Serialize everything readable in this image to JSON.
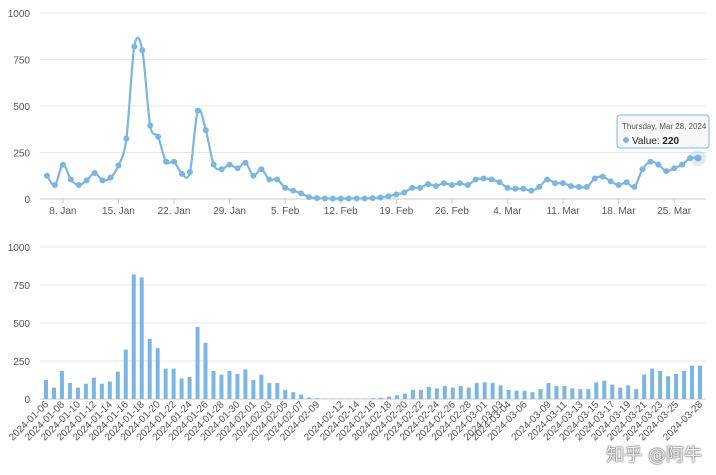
{
  "chart_data": [
    {
      "type": "line",
      "title": "",
      "xlabel": "",
      "ylabel": "",
      "ylim": [
        0,
        1000
      ],
      "yticks": [
        0,
        250,
        500,
        750,
        1000
      ],
      "series": [
        {
          "name": "Value",
          "color": "#7cb5e0"
        }
      ],
      "x_ticks": [
        "8. Jan",
        "15. Jan",
        "22. Jan",
        "29. Jan",
        "5. Feb",
        "12. Feb",
        "19. Feb",
        "26. Feb",
        "4. Mar",
        "11. Mar",
        "18. Mar",
        "25. Mar"
      ],
      "tooltip": {
        "date": "Thursday, Mar 28, 2024",
        "label": "Value",
        "value": "220"
      }
    },
    {
      "type": "bar",
      "title": "",
      "xlabel": "",
      "ylabel": "",
      "ylim": [
        0,
        1000
      ],
      "yticks": [
        0,
        250,
        500,
        750,
        1000
      ],
      "series": [
        {
          "name": "Value",
          "color": "#7cb5e0"
        }
      ],
      "x_ticks": [
        "2024-01-06",
        "2024-01-08",
        "2024-01-10",
        "2024-01-12",
        "2024-01-14",
        "2024-01-16",
        "2024-01-18",
        "2024-01-20",
        "2024-01-22",
        "2024-01-24",
        "2024-01-26",
        "2024-01-28",
        "2024-01-30",
        "2024-02-01",
        "2024-02-03",
        "2024-02-05",
        "2024-02-07",
        "2024-02-09",
        "2024-02-12",
        "2024-02-14",
        "2024-02-16",
        "2024-02-18",
        "2024-02-20",
        "2024-02-22",
        "2024-02-24",
        "2024-02-26",
        "2024-02-28",
        "2024-03-01",
        "2024-03-03",
        "2024-03-04",
        "2024-03-06",
        "2024-03-09",
        "2024-03-11",
        "2024-03-13",
        "2024-03-15",
        "2024-03-17",
        "2024-03-19",
        "2024-03-21",
        "2024-03-23",
        "2024-03-25",
        "2024-03-28"
      ]
    }
  ],
  "dates": [
    "2024-01-06",
    "2024-01-07",
    "2024-01-08",
    "2024-01-09",
    "2024-01-10",
    "2024-01-11",
    "2024-01-12",
    "2024-01-13",
    "2024-01-14",
    "2024-01-15",
    "2024-01-16",
    "2024-01-17",
    "2024-01-18",
    "2024-01-19",
    "2024-01-20",
    "2024-01-21",
    "2024-01-22",
    "2024-01-23",
    "2024-01-24",
    "2024-01-25",
    "2024-01-26",
    "2024-01-27",
    "2024-01-28",
    "2024-01-29",
    "2024-01-30",
    "2024-01-31",
    "2024-02-01",
    "2024-02-02",
    "2024-02-03",
    "2024-02-04",
    "2024-02-05",
    "2024-02-06",
    "2024-02-07",
    "2024-02-08",
    "2024-02-09",
    "2024-02-10",
    "2024-02-11",
    "2024-02-12",
    "2024-02-13",
    "2024-02-14",
    "2024-02-15",
    "2024-02-16",
    "2024-02-17",
    "2024-02-18",
    "2024-02-19",
    "2024-02-20",
    "2024-02-21",
    "2024-02-22",
    "2024-02-23",
    "2024-02-24",
    "2024-02-25",
    "2024-02-26",
    "2024-02-27",
    "2024-02-28",
    "2024-02-29",
    "2024-03-01",
    "2024-03-02",
    "2024-03-03",
    "2024-03-04",
    "2024-03-05",
    "2024-03-06",
    "2024-03-07",
    "2024-03-08",
    "2024-03-09",
    "2024-03-10",
    "2024-03-11",
    "2024-03-12",
    "2024-03-13",
    "2024-03-14",
    "2024-03-15",
    "2024-03-16",
    "2024-03-17",
    "2024-03-18",
    "2024-03-19",
    "2024-03-20",
    "2024-03-21",
    "2024-03-22",
    "2024-03-23",
    "2024-03-24",
    "2024-03-25",
    "2024-03-26",
    "2024-03-27",
    "2024-03-28"
  ],
  "values": [
    125,
    75,
    185,
    105,
    75,
    100,
    140,
    100,
    115,
    180,
    325,
    820,
    800,
    395,
    335,
    200,
    200,
    135,
    145,
    475,
    370,
    185,
    160,
    185,
    165,
    195,
    125,
    160,
    105,
    105,
    60,
    45,
    30,
    10,
    5,
    3,
    2,
    2,
    3,
    3,
    3,
    5,
    8,
    15,
    25,
    35,
    60,
    60,
    80,
    70,
    85,
    75,
    85,
    75,
    105,
    110,
    105,
    90,
    60,
    55,
    55,
    45,
    65,
    105,
    85,
    85,
    70,
    65,
    65,
    110,
    120,
    95,
    75,
    90,
    65,
    160,
    200,
    185,
    150,
    165,
    185,
    220,
    220
  ],
  "watermark": "知乎 @阿牛"
}
